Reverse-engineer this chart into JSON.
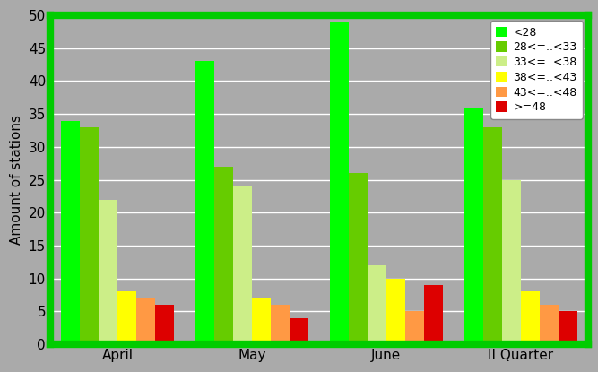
{
  "categories": [
    "April",
    "May",
    "June",
    "II Quarter"
  ],
  "series": [
    {
      "label": "<28",
      "color": "#00FF00",
      "values": [
        34,
        43,
        49,
        36
      ]
    },
    {
      "label": "28<=..<33",
      "color": "#66CC00",
      "values": [
        33,
        27,
        26,
        33
      ]
    },
    {
      "label": "33<=..<38",
      "color": "#CCEE88",
      "values": [
        22,
        24,
        12,
        25
      ]
    },
    {
      "label": "38<=..<43",
      "color": "#FFFF00",
      "values": [
        8,
        7,
        10,
        8
      ]
    },
    {
      "label": "43<=..<48",
      "color": "#FF9944",
      "values": [
        7,
        6,
        5,
        6
      ]
    },
    {
      "label": ">=48",
      "color": "#DD0000",
      "values": [
        6,
        4,
        9,
        5
      ]
    }
  ],
  "ylabel": "Amount of stations",
  "ylim": [
    0,
    50
  ],
  "yticks": [
    0,
    5,
    10,
    15,
    20,
    25,
    30,
    35,
    40,
    45,
    50
  ],
  "background_color": "#AAAAAA",
  "plot_bg_color": "#AAAAAA",
  "bar_width": 0.14,
  "legend_loc": "upper right",
  "grid_color": "#FFFFFF",
  "border_color": "#00CC00",
  "border_width": 6
}
